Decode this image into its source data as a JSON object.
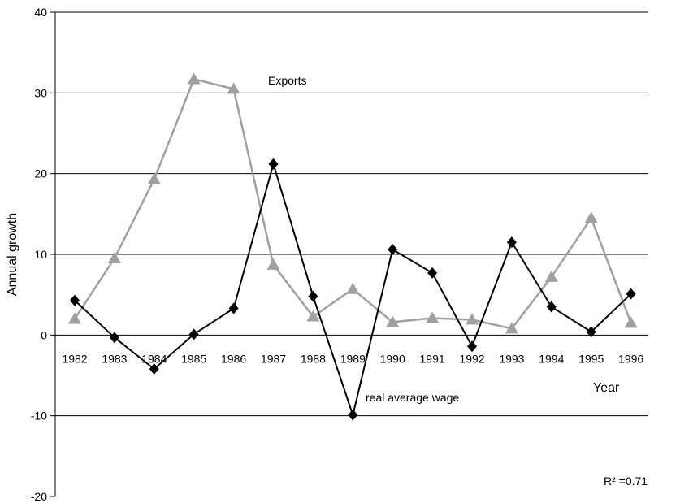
{
  "chart_data": {
    "type": "line",
    "xlabel": "Year",
    "ylabel": "Annual growth",
    "ylim": [
      -20,
      40
    ],
    "yticks": [
      -20,
      -10,
      0,
      10,
      20,
      30,
      40
    ],
    "grid": "horizontal",
    "categories": [
      "1982",
      "1983",
      "1984",
      "1985",
      "1986",
      "1987",
      "1988",
      "1989",
      "1990",
      "1991",
      "1992",
      "1993",
      "1994",
      "1995",
      "1996"
    ],
    "series": [
      {
        "name": "Exports",
        "color": "#a0a0a0",
        "marker": "triangle",
        "values": [
          2.0,
          9.5,
          19.3,
          31.7,
          30.5,
          8.7,
          2.3,
          5.7,
          1.6,
          2.1,
          1.9,
          0.8,
          7.2,
          14.5,
          1.5
        ]
      },
      {
        "name": "real average wage",
        "color": "#000000",
        "marker": "diamond",
        "values": [
          4.3,
          -0.3,
          -4.2,
          0.1,
          3.3,
          21.2,
          4.8,
          -9.9,
          10.6,
          7.7,
          -1.4,
          11.5,
          3.5,
          0.4,
          5.1
        ]
      }
    ],
    "annotations": {
      "r_squared": "R² =0.71"
    }
  }
}
